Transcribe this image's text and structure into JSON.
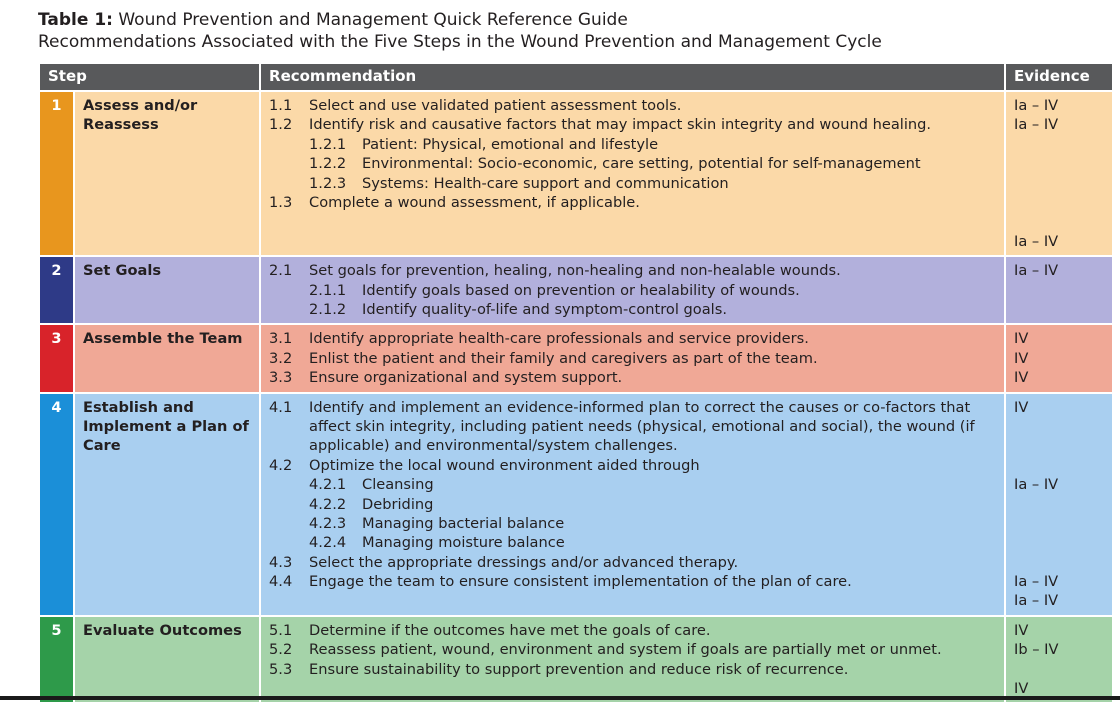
{
  "title": {
    "label": "Table 1:",
    "text": "Wound Prevention and Management Quick Reference Guide",
    "subtitle": "Recommendations Associated with the Five Steps in the Wound Prevention and Management Cycle"
  },
  "headers": {
    "step": "Step",
    "recommendation": "Recommendation",
    "evidence": "Evidence"
  },
  "colors": {
    "header_bg": "#58595b",
    "steps": [
      {
        "accent": "#e8961e",
        "bg": "#fbd9a8"
      },
      {
        "accent": "#2e3a87",
        "bg": "#b2b0dc"
      },
      {
        "accent": "#d8232a",
        "bg": "#f0a896"
      },
      {
        "accent": "#1b8fd8",
        "bg": "#a9cff0"
      },
      {
        "accent": "#2e9a4a",
        "bg": "#a5d3a9"
      }
    ]
  },
  "steps": [
    {
      "num": "1",
      "name": "Assess and/or Reassess",
      "recs": [
        {
          "n": "1.1",
          "t": "Select and use validated patient assessment tools."
        },
        {
          "n": "1.2",
          "t": "Identify risk and causative factors that may impact skin integrity and wound healing."
        },
        {
          "n": "1.2.1",
          "t": "Patient: Physical, emotional and lifestyle",
          "sub": true
        },
        {
          "n": "1.2.2",
          "t": "Environmental: Socio-economic, care setting, potential for self-management",
          "sub": true
        },
        {
          "n": "1.2.3",
          "t": "Systems: Health-care support and communication",
          "sub": true
        },
        {
          "n": "1.3",
          "t": "Complete a wound assessment, if applicable."
        }
      ],
      "evidence": [
        "Ia – IV",
        "Ia – IV",
        "",
        "",
        "",
        "",
        "",
        "Ia – IV"
      ]
    },
    {
      "num": "2",
      "name": "Set Goals",
      "recs": [
        {
          "n": "2.1",
          "t": "Set goals for prevention, healing, non-healing and non-healable wounds."
        },
        {
          "n": "2.1.1",
          "t": "Identify goals based on prevention or healability of wounds.",
          "sub": true
        },
        {
          "n": "2.1.2",
          "t": "Identify quality-of-life and symptom-control goals.",
          "sub": true
        }
      ],
      "evidence": [
        "Ia – IV"
      ]
    },
    {
      "num": "3",
      "name": "Assemble the Team",
      "recs": [
        {
          "n": "3.1",
          "t": "Identify appropriate health-care professionals and service providers."
        },
        {
          "n": "3.2",
          "t": "Enlist the patient and their family and caregivers as part of the team."
        },
        {
          "n": "3.3",
          "t": "Ensure organizational and system support."
        }
      ],
      "evidence": [
        "IV",
        "IV",
        "IV"
      ]
    },
    {
      "num": "4",
      "name": "Establish and Implement a Plan of Care",
      "recs": [
        {
          "n": "4.1",
          "t": "Identify and implement an evidence-informed plan to correct the causes or co-factors that affect skin integrity, including patient needs (physical, emotional and social), the wound (if applicable) and environmental/system challenges."
        },
        {
          "n": "4.2",
          "t": "Optimize the local wound environment aided through"
        },
        {
          "n": "4.2.1",
          "t": "Cleansing",
          "sub": true
        },
        {
          "n": "4.2.2",
          "t": "Debriding",
          "sub": true
        },
        {
          "n": "4.2.3",
          "t": "Managing bacterial balance",
          "sub": true
        },
        {
          "n": "4.2.4",
          "t": "Managing moisture balance",
          "sub": true
        },
        {
          "n": "4.3",
          "t": "Select the appropriate dressings and/or advanced therapy."
        },
        {
          "n": "4.4",
          "t": "Engage the team to ensure consistent implementation of the plan of care."
        }
      ],
      "evidence": [
        "IV",
        "",
        "",
        "",
        "Ia – IV",
        "",
        "",
        "",
        "",
        "Ia – IV",
        "Ia – IV"
      ]
    },
    {
      "num": "5",
      "name": "Evaluate Outcomes",
      "recs": [
        {
          "n": "5.1",
          "t": "Determine if the outcomes have met the goals of care."
        },
        {
          "n": "5.2",
          "t": "Reassess patient, wound, environment and system if goals are partially met or unmet."
        },
        {
          "n": "5.3",
          "t": "Ensure sustainability to support prevention and reduce risk of recurrence."
        }
      ],
      "evidence": [
        "IV",
        "Ib – IV",
        "",
        "IV"
      ]
    }
  ]
}
